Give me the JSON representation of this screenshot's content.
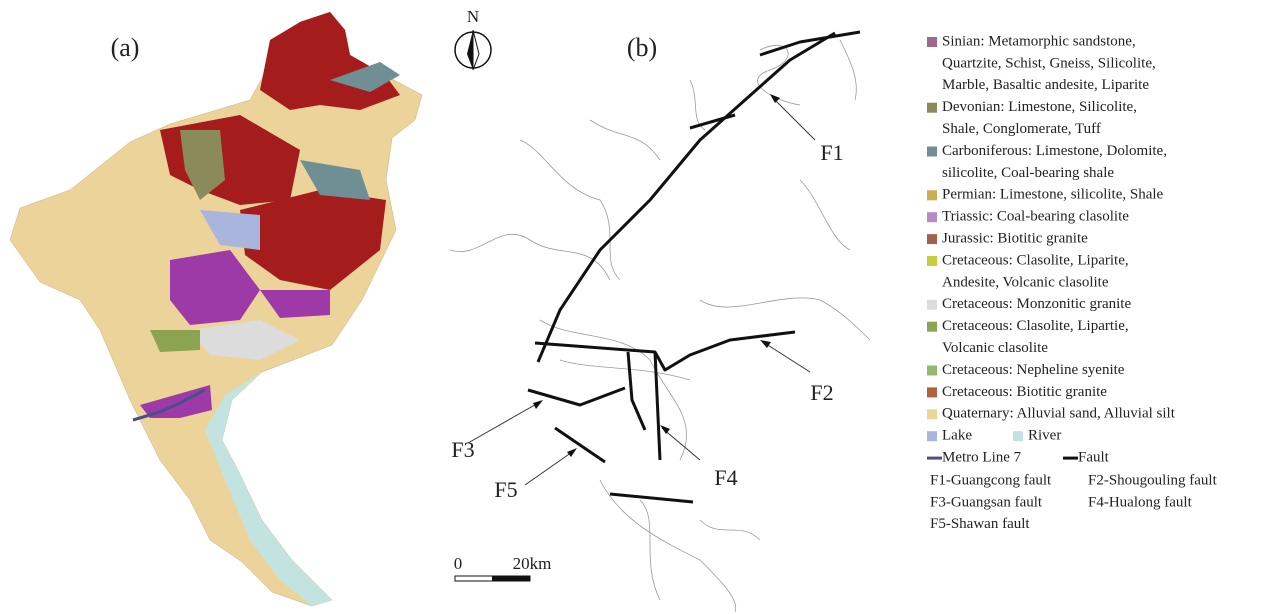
{
  "panels": {
    "a": "(a)",
    "b": "(b)"
  },
  "north": "N",
  "legend": {
    "units": [
      {
        "color": "#a0668e",
        "lines": [
          "Sinian: Metamorphic sandstone,",
          "Quartzite, Schist, Gneiss, Silicolite,",
          "Marble, Basaltic andesite, Liparite"
        ]
      },
      {
        "color": "#8a8a5a",
        "lines": [
          "Devonian: Limestone, Silicolite,",
          "Shale, Conglomerate, Tuff"
        ]
      },
      {
        "color": "#6f8f94",
        "lines": [
          "Carboniferous: Limestone, Dolomite,",
          "silicolite, Coal-bearing shale"
        ]
      },
      {
        "color": "#c9ad50",
        "lines": [
          "Permian: Limestone, silicolite, Shale"
        ]
      },
      {
        "color": "#b68ac6",
        "lines": [
          "Triassic: Coal-bearing clasolite"
        ]
      },
      {
        "color": "#a0624e",
        "lines": [
          "Jurassic:  Biotitic granite"
        ]
      },
      {
        "color": "#c8cc3e",
        "lines": [
          "Cretaceous: Clasolite, Liparite,",
          "Andesite, Volcanic clasolite"
        ]
      },
      {
        "color": "#dcdcdc",
        "lines": [
          "Cretaceous: Monzonitic granite"
        ]
      },
      {
        "color": "#8ca352",
        "lines": [
          "Cretaceous: Clasolite, Lipartie,",
          "Volcanic clasolite"
        ]
      },
      {
        "color": "#93b870",
        "lines": [
          "Cretaceous: Nepheline syenite"
        ]
      },
      {
        "color": "#b3603f",
        "lines": [
          "Cretaceous: Biotitic granite"
        ]
      },
      {
        "color": "#ecd39a",
        "lines": [
          "Quaternary: Alluvial sand, Alluvial silt"
        ]
      }
    ],
    "lake": {
      "label": "Lake",
      "color": "#a9b5dd"
    },
    "river": {
      "label": "River",
      "color": "#c2e3e0"
    },
    "metro": {
      "label": "Metro Line 7",
      "color": "#4a4f8a"
    },
    "fault": "Fault"
  },
  "fault_labels": [
    "F1",
    "F2",
    "F3",
    "F4",
    "F5"
  ],
  "fault_names": [
    "F1-Guangcong fault",
    "F2-Shougouling fault",
    "F3-Guangsan fault",
    "F4-Hualong fault",
    "F5-Shawan fault"
  ],
  "scale": {
    "start": "0",
    "end": "20km"
  }
}
